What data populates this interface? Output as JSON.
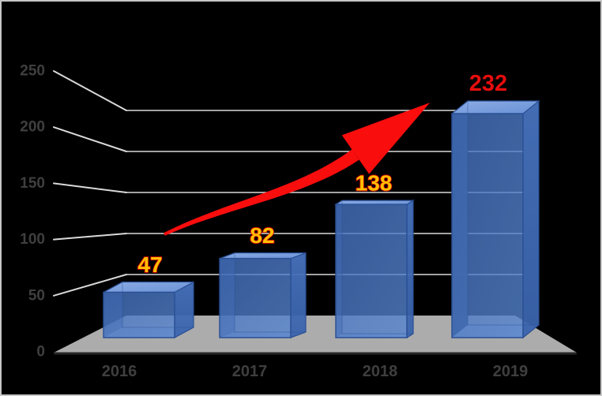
{
  "window": {
    "background": "#000000",
    "border_color": "#c6c6c6"
  },
  "chart_data": {
    "type": "bar",
    "style": "3d-perspective-columns",
    "title": "",
    "xlabel": "",
    "ylabel": "",
    "categories": [
      "2016",
      "2017",
      "2018",
      "2019"
    ],
    "series": [
      {
        "name": "values",
        "values": [
          47,
          82,
          138,
          232
        ]
      }
    ],
    "data_labels": {
      "texts": [
        "47",
        "82",
        "138",
        "232"
      ],
      "fills": [
        "#FFC000",
        "#FFC000",
        "#FFC000",
        "#E60D0D"
      ],
      "outlines": [
        "#D00000",
        "#D00000",
        "#D00000",
        "none"
      ],
      "sizes": [
        28,
        28,
        28,
        29
      ]
    },
    "ylim": [
      0,
      250
    ],
    "y_ticks": [
      0,
      50,
      100,
      150,
      200,
      250
    ],
    "grid": true,
    "legend": false,
    "colors": {
      "bar_front": "#4573C2",
      "bar_top": "#7FA3DE",
      "bar_side": "#3E69B4",
      "bar_edge": "#2A4F94",
      "bar_inner_dark": "#24457E",
      "bar_inner_darkest": "#152C4F",
      "bar_inner_bottom": "#93AFDF",
      "floor": "#ACACAC",
      "floor_front_edge": "#262626",
      "gridline": "#D9D9D9",
      "axis_text": "#3F3F3F",
      "arrow": "#F90D0D"
    },
    "annotation_arrow": {
      "description": "red curved growth arrow from the 100-level near 2016 up to the top of the 2019 column",
      "color": "#F90D0D",
      "tail": [
        208,
        297
      ],
      "control1": [
        290,
        258
      ],
      "control2": [
        380,
        245
      ],
      "head_base": [
        450,
        196
      ],
      "head_half_width": 30,
      "tip_length": 115,
      "tail_width": 4,
      "shaft_end_width": 16
    }
  }
}
